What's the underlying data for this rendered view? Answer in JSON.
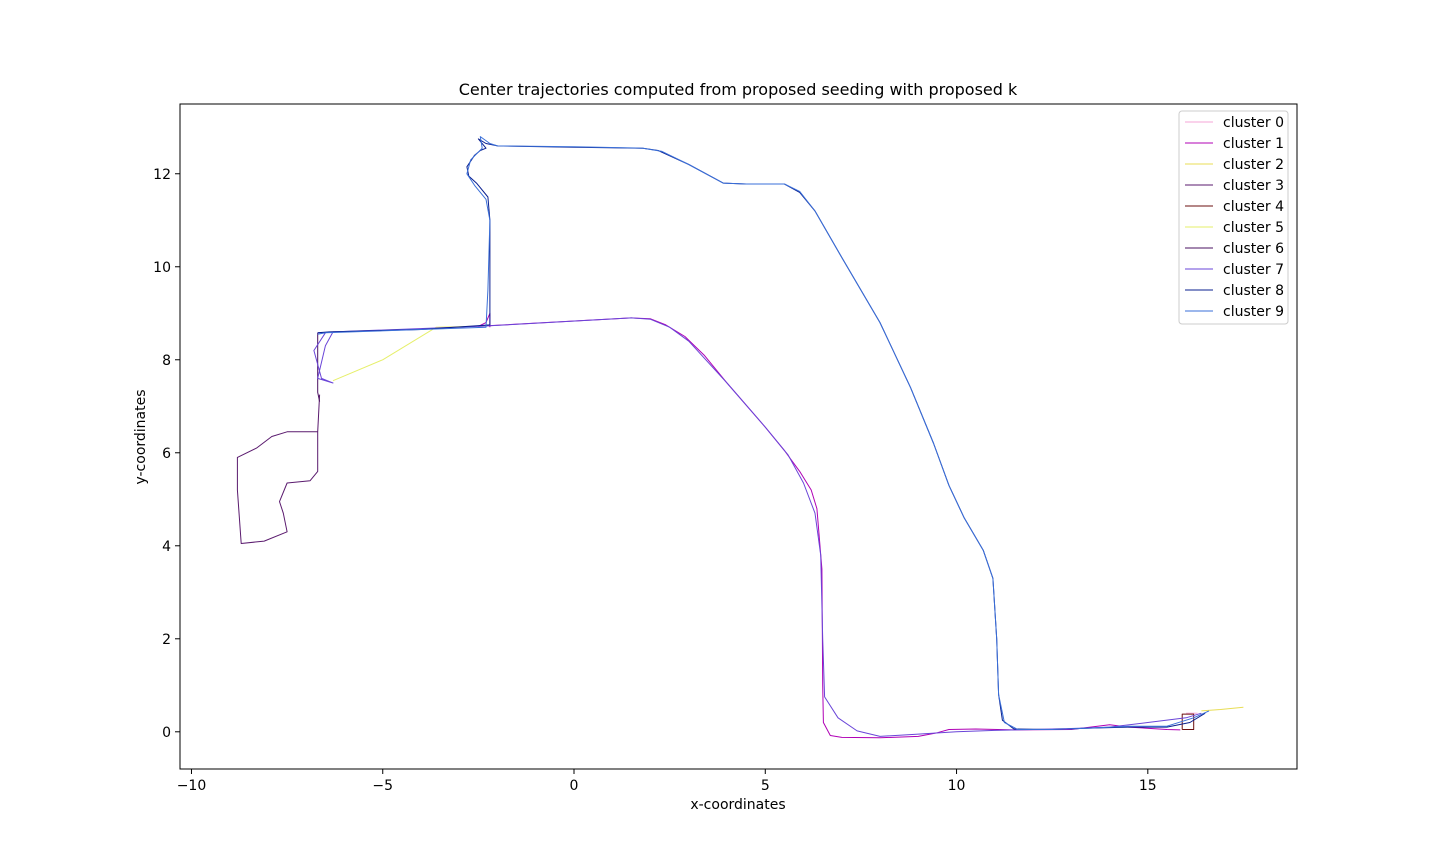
{
  "chart_data": {
    "type": "line",
    "title": "Center trajectories computed from proposed seeding with proposed k",
    "xlabel": "x-coordinates",
    "ylabel": "y-coordinates",
    "xlim": [
      -10.3,
      18.9
    ],
    "ylim": [
      -0.8,
      13.5
    ],
    "xticks": [
      -10,
      -5,
      0,
      5,
      10,
      15
    ],
    "xtick_labels": [
      "−10",
      "−5",
      "0",
      "5",
      "10",
      "15"
    ],
    "yticks": [
      0,
      2,
      4,
      6,
      8,
      10,
      12
    ],
    "ytick_labels": [
      "0",
      "2",
      "4",
      "6",
      "8",
      "10",
      "12"
    ],
    "grid": false,
    "legend_position": "top-right",
    "series": [
      {
        "name": "cluster 0",
        "color": "#f4a6d7",
        "points": [
          [
            16.0,
            0.4
          ],
          [
            16.3,
            0.4
          ]
        ]
      },
      {
        "name": "cluster 1",
        "color": "#b000b5",
        "points": [
          [
            -2.2,
            8.7
          ],
          [
            -2.2,
            9.0
          ],
          [
            -2.3,
            8.8
          ],
          [
            -2.5,
            8.72
          ],
          [
            1.5,
            8.9
          ],
          [
            2.0,
            8.88
          ],
          [
            2.4,
            8.75
          ],
          [
            2.9,
            8.5
          ],
          [
            3.4,
            8.1
          ],
          [
            4.0,
            7.5
          ],
          [
            5.0,
            6.55
          ],
          [
            5.5,
            6.05
          ],
          [
            5.9,
            5.6
          ],
          [
            6.2,
            5.2
          ],
          [
            6.35,
            4.8
          ],
          [
            6.48,
            3.5
          ],
          [
            6.5,
            1.0
          ],
          [
            6.52,
            0.2
          ],
          [
            6.7,
            -0.08
          ],
          [
            7.0,
            -0.12
          ],
          [
            8.0,
            -0.13
          ],
          [
            9.0,
            -0.1
          ],
          [
            9.5,
            -0.02
          ],
          [
            9.8,
            0.05
          ],
          [
            10.5,
            0.06
          ],
          [
            11.5,
            0.04
          ],
          [
            13.0,
            0.05
          ],
          [
            14.0,
            0.15
          ],
          [
            14.5,
            0.1
          ],
          [
            15.5,
            0.05
          ],
          [
            15.85,
            0.04
          ]
        ]
      },
      {
        "name": "cluster 2",
        "color": "#e8dd55",
        "points": [
          [
            16.4,
            0.45
          ],
          [
            16.9,
            0.48
          ],
          [
            17.5,
            0.53
          ]
        ]
      },
      {
        "name": "cluster 3",
        "color": "#5a1a6e",
        "points": [
          [
            -6.65,
            7.25
          ],
          [
            -6.7,
            6.45
          ],
          [
            -7.5,
            6.45
          ],
          [
            -7.9,
            6.35
          ],
          [
            -8.3,
            6.1
          ],
          [
            -8.8,
            5.9
          ],
          [
            -8.8,
            5.2
          ],
          [
            -8.7,
            4.05
          ],
          [
            -8.1,
            4.1
          ],
          [
            -7.5,
            4.3
          ],
          [
            -7.6,
            4.7
          ],
          [
            -7.7,
            4.95
          ],
          [
            -7.5,
            5.35
          ],
          [
            -6.9,
            5.4
          ],
          [
            -6.7,
            5.6
          ],
          [
            -6.7,
            6.45
          ]
        ]
      },
      {
        "name": "cluster 4",
        "color": "#6b0f0f",
        "points": [
          [
            15.9,
            0.05
          ],
          [
            15.9,
            0.38
          ],
          [
            16.2,
            0.38
          ],
          [
            16.2,
            0.05
          ],
          [
            15.9,
            0.05
          ]
        ]
      },
      {
        "name": "cluster 5",
        "color": "#e6ef6a",
        "points": [
          [
            -6.3,
            7.55
          ],
          [
            -5.0,
            8.0
          ],
          [
            -3.6,
            8.7
          ],
          [
            -2.6,
            8.72
          ]
        ]
      },
      {
        "name": "cluster 6",
        "color": "#4a1060",
        "points": [
          [
            -6.7,
            8.58
          ],
          [
            -6.7,
            7.3
          ],
          [
            -6.65,
            7.1
          ]
        ]
      },
      {
        "name": "cluster 7",
        "color": "#6a45d8",
        "points": [
          [
            -6.7,
            8.58
          ],
          [
            -6.5,
            8.58
          ],
          [
            -6.8,
            8.2
          ],
          [
            -6.6,
            7.6
          ],
          [
            -6.3,
            7.5
          ],
          [
            -6.7,
            7.6
          ],
          [
            -6.5,
            8.3
          ],
          [
            -6.3,
            8.6
          ],
          [
            -2.45,
            8.72
          ],
          [
            1.5,
            8.9
          ],
          [
            2.0,
            8.87
          ],
          [
            2.5,
            8.7
          ],
          [
            3.0,
            8.4
          ],
          [
            4.0,
            7.5
          ],
          [
            5.0,
            6.55
          ],
          [
            5.6,
            5.95
          ],
          [
            6.0,
            5.35
          ],
          [
            6.3,
            4.7
          ],
          [
            6.45,
            3.8
          ],
          [
            6.5,
            2.0
          ],
          [
            6.55,
            0.75
          ],
          [
            6.9,
            0.3
          ],
          [
            7.4,
            0.02
          ],
          [
            8.0,
            -0.1
          ],
          [
            9.0,
            -0.05
          ],
          [
            10.0,
            0.0
          ],
          [
            11.0,
            0.03
          ],
          [
            12.0,
            0.05
          ],
          [
            13.0,
            0.07
          ],
          [
            14.0,
            0.1
          ],
          [
            15.0,
            0.2
          ],
          [
            16.0,
            0.3
          ],
          [
            16.4,
            0.4
          ]
        ]
      },
      {
        "name": "cluster 8",
        "color": "#0a1f8f",
        "points": [
          [
            -6.7,
            8.58
          ],
          [
            -6.4,
            8.6
          ],
          [
            -4.0,
            8.65
          ],
          [
            -2.2,
            8.75
          ],
          [
            -2.2,
            9.5
          ],
          [
            -2.2,
            11.0
          ],
          [
            -2.25,
            11.5
          ],
          [
            -2.55,
            11.8
          ],
          [
            -2.75,
            11.95
          ],
          [
            -2.8,
            12.15
          ],
          [
            -2.6,
            12.4
          ],
          [
            -2.45,
            12.5
          ],
          [
            -2.3,
            12.55
          ],
          [
            -2.5,
            12.75
          ],
          [
            -2.3,
            12.65
          ],
          [
            -2.0,
            12.6
          ],
          [
            0.0,
            12.57
          ],
          [
            1.8,
            12.55
          ],
          [
            2.2,
            12.5
          ],
          [
            3.0,
            12.2
          ],
          [
            3.9,
            11.8
          ],
          [
            4.5,
            11.78
          ],
          [
            5.5,
            11.78
          ],
          [
            5.9,
            11.6
          ],
          [
            6.3,
            11.2
          ],
          [
            7.0,
            10.2
          ],
          [
            8.0,
            8.8
          ],
          [
            8.8,
            7.4
          ],
          [
            9.4,
            6.2
          ],
          [
            9.8,
            5.3
          ],
          [
            10.2,
            4.6
          ],
          [
            10.7,
            3.9
          ],
          [
            10.95,
            3.3
          ],
          [
            11.05,
            2.0
          ],
          [
            11.1,
            0.8
          ],
          [
            11.2,
            0.25
          ],
          [
            11.5,
            0.06
          ],
          [
            12.5,
            0.05
          ],
          [
            13.5,
            0.08
          ],
          [
            14.5,
            0.1
          ],
          [
            15.5,
            0.1
          ],
          [
            16.1,
            0.2
          ],
          [
            16.5,
            0.4
          ]
        ]
      },
      {
        "name": "cluster 9",
        "color": "#3a6fd8",
        "points": [
          [
            -6.7,
            8.55
          ],
          [
            -6.5,
            8.58
          ],
          [
            -4.0,
            8.65
          ],
          [
            -2.3,
            8.7
          ],
          [
            -2.25,
            9.5
          ],
          [
            -2.2,
            11.0
          ],
          [
            -2.3,
            11.45
          ],
          [
            -2.6,
            11.75
          ],
          [
            -2.8,
            12.0
          ],
          [
            -2.7,
            12.3
          ],
          [
            -2.4,
            12.55
          ],
          [
            -2.45,
            12.8
          ],
          [
            -2.2,
            12.65
          ],
          [
            -2.0,
            12.6
          ],
          [
            0.0,
            12.58
          ],
          [
            1.8,
            12.55
          ],
          [
            2.3,
            12.48
          ],
          [
            3.0,
            12.2
          ],
          [
            3.9,
            11.8
          ],
          [
            4.5,
            11.78
          ],
          [
            5.5,
            11.78
          ],
          [
            5.9,
            11.62
          ],
          [
            6.3,
            11.2
          ],
          [
            7.0,
            10.2
          ],
          [
            8.0,
            8.8
          ],
          [
            8.8,
            7.4
          ],
          [
            9.4,
            6.2
          ],
          [
            9.8,
            5.3
          ],
          [
            10.2,
            4.6
          ],
          [
            10.7,
            3.9
          ],
          [
            10.95,
            3.3
          ],
          [
            11.05,
            2.0
          ],
          [
            11.1,
            0.8
          ],
          [
            11.25,
            0.2
          ],
          [
            11.6,
            0.05
          ],
          [
            12.5,
            0.05
          ],
          [
            13.5,
            0.08
          ],
          [
            14.5,
            0.12
          ],
          [
            15.5,
            0.12
          ],
          [
            16.2,
            0.3
          ],
          [
            16.6,
            0.45
          ]
        ]
      }
    ]
  }
}
